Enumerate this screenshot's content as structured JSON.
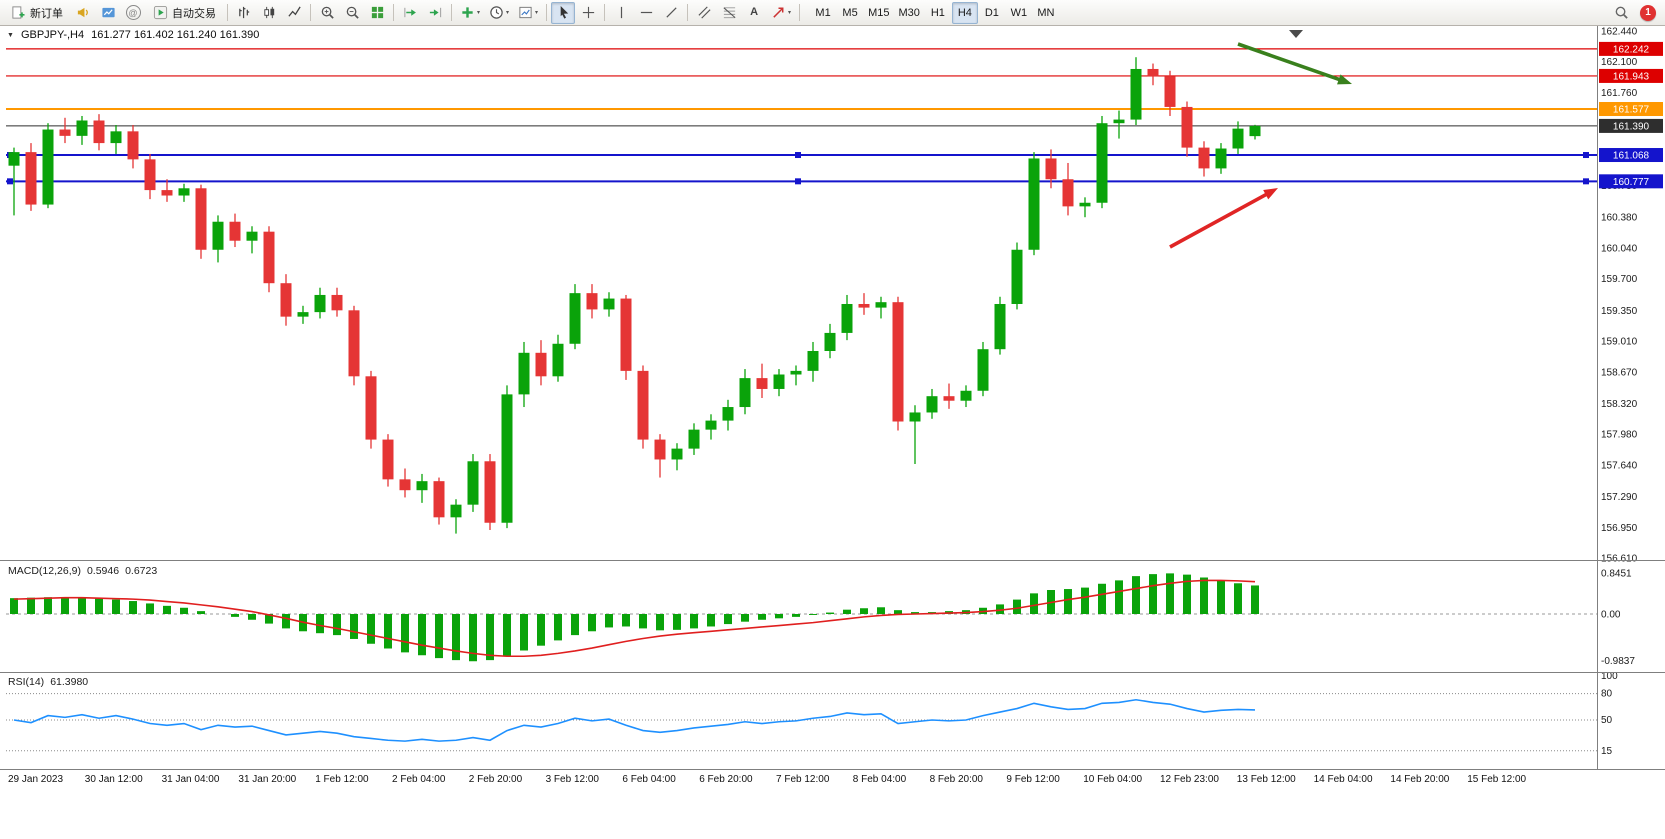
{
  "toolbar": {
    "new_order_label": "新订单",
    "autotrading_label": "自动交易",
    "timeframes": [
      "M1",
      "M5",
      "M15",
      "M30",
      "H1",
      "H4",
      "D1",
      "W1",
      "MN"
    ],
    "active_timeframe": "H4",
    "notification_count": "1",
    "icons": {
      "community": "@",
      "text_tool": "A",
      "caret": "▾",
      "expand_arrow": "▼"
    }
  },
  "legend": {
    "symbol_period": "GBPJPY-,H4",
    "ohlc_text": "161.277 161.402 161.240 161.390"
  },
  "indicators": {
    "macd": {
      "name": "MACD(12,26,9)",
      "main_value": "0.5946",
      "signal_value": "0.6723"
    },
    "rsi": {
      "name": "RSI(14)",
      "value": "61.3980"
    }
  },
  "chart_data": {
    "type": "candlestick",
    "symbol": "GBPJPY-",
    "timeframe": "H4",
    "current_ohlc": {
      "open": 161.277,
      "high": 161.402,
      "low": 161.24,
      "close": 161.39
    },
    "price_range": [
      156.61,
      162.44
    ],
    "colors": {
      "up": "#0aa30a",
      "down": "#e53535",
      "macd_hist": "#0aa30a",
      "macd_signal": "#e01f1f",
      "rsi_line": "#1e90ff"
    },
    "price_axis_ticks": [
      "162.440",
      "162.100",
      "161.760",
      "161.420",
      "161.080",
      "160.730",
      "160.380",
      "160.040",
      "159.700",
      "159.350",
      "159.010",
      "158.670",
      "158.320",
      "157.980",
      "157.640",
      "157.290",
      "156.950",
      "156.610"
    ],
    "hlines": [
      {
        "name": "resistance-line-1",
        "price": 162.242,
        "label": "162.242",
        "color": "#dd0000",
        "width": 1.2,
        "handles": false
      },
      {
        "name": "resistance-line-2",
        "price": 161.943,
        "label": "161.943",
        "color": "#dd0000",
        "width": 1.2,
        "handles": false
      },
      {
        "name": "pivot-line",
        "price": 161.577,
        "label": "161.577",
        "color": "#ff9800",
        "width": 2,
        "handles": false
      },
      {
        "name": "current-price-line",
        "price": 161.39,
        "label": "161.390",
        "color": "#2e2e2e",
        "width": 1,
        "handles": false
      },
      {
        "name": "support-line-1",
        "price": 161.068,
        "label": "161.068",
        "color": "#1414cc",
        "width": 2,
        "handles": true
      },
      {
        "name": "support-line-2",
        "price": 160.777,
        "label": "160.777",
        "color": "#1414cc",
        "width": 2,
        "handles": true
      }
    ],
    "arrows": [
      {
        "name": "downtrend-arrow",
        "color": "#39801d",
        "from": [
          1238,
          44
        ],
        "to": [
          1352,
          84
        ]
      },
      {
        "name": "bounce-arrow",
        "color": "#e02525",
        "from": [
          1170,
          247
        ],
        "to": [
          1278,
          188
        ]
      }
    ],
    "time_labels": [
      "29 Jan 2023",
      "30 Jan 12:00",
      "31 Jan 04:00",
      "31 Jan 20:00",
      "1 Feb 12:00",
      "2 Feb 04:00",
      "2 Feb 20:00",
      "3 Feb 12:00",
      "6 Feb 04:00",
      "6 Feb 20:00",
      "7 Feb 12:00",
      "8 Feb 04:00",
      "8 Feb 20:00",
      "9 Feb 12:00",
      "10 Feb 04:00",
      "12 Feb 23:00",
      "13 Feb 12:00",
      "14 Feb 04:00",
      "14 Feb 20:00",
      "15 Feb 12:00"
    ],
    "candles": [
      [
        160.95,
        161.15,
        160.4,
        161.1
      ],
      [
        161.1,
        161.2,
        160.45,
        160.52
      ],
      [
        160.52,
        161.42,
        160.48,
        161.35
      ],
      [
        161.35,
        161.48,
        161.2,
        161.28
      ],
      [
        161.28,
        161.5,
        161.18,
        161.45
      ],
      [
        161.45,
        161.52,
        161.12,
        161.2
      ],
      [
        161.2,
        161.4,
        161.08,
        161.33
      ],
      [
        161.33,
        161.4,
        160.92,
        161.02
      ],
      [
        161.02,
        161.08,
        160.58,
        160.68
      ],
      [
        160.68,
        160.8,
        160.55,
        160.62
      ],
      [
        160.62,
        160.75,
        160.55,
        160.7
      ],
      [
        160.7,
        160.74,
        159.92,
        160.02
      ],
      [
        160.02,
        160.4,
        159.88,
        160.33
      ],
      [
        160.33,
        160.42,
        160.05,
        160.12
      ],
      [
        160.12,
        160.28,
        159.98,
        160.22
      ],
      [
        160.22,
        160.28,
        159.55,
        159.65
      ],
      [
        159.65,
        159.75,
        159.18,
        159.28
      ],
      [
        159.28,
        159.4,
        159.2,
        159.33
      ],
      [
        159.33,
        159.6,
        159.26,
        159.52
      ],
      [
        159.52,
        159.6,
        159.28,
        159.35
      ],
      [
        159.35,
        159.4,
        158.52,
        158.62
      ],
      [
        158.62,
        158.68,
        157.82,
        157.92
      ],
      [
        157.92,
        157.98,
        157.4,
        157.48
      ],
      [
        157.48,
        157.6,
        157.28,
        157.36
      ],
      [
        157.36,
        157.54,
        157.22,
        157.46
      ],
      [
        157.46,
        157.5,
        156.98,
        157.06
      ],
      [
        157.06,
        157.26,
        156.88,
        157.2
      ],
      [
        157.2,
        157.76,
        157.12,
        157.68
      ],
      [
        157.68,
        157.76,
        156.92,
        157.0
      ],
      [
        157.0,
        158.52,
        156.94,
        158.42
      ],
      [
        158.42,
        159.0,
        158.28,
        158.88
      ],
      [
        158.88,
        159.02,
        158.52,
        158.62
      ],
      [
        158.62,
        159.08,
        158.56,
        158.98
      ],
      [
        158.98,
        159.64,
        158.92,
        159.54
      ],
      [
        159.54,
        159.64,
        159.26,
        159.36
      ],
      [
        159.36,
        159.55,
        159.28,
        159.48
      ],
      [
        159.48,
        159.52,
        158.58,
        158.68
      ],
      [
        158.68,
        158.74,
        157.82,
        157.92
      ],
      [
        157.92,
        157.98,
        157.5,
        157.7
      ],
      [
        157.7,
        157.88,
        157.58,
        157.82
      ],
      [
        157.82,
        158.1,
        157.75,
        158.03
      ],
      [
        158.03,
        158.2,
        157.92,
        158.13
      ],
      [
        158.13,
        158.36,
        158.02,
        158.28
      ],
      [
        158.28,
        158.7,
        158.2,
        158.6
      ],
      [
        158.6,
        158.76,
        158.38,
        158.48
      ],
      [
        158.48,
        158.7,
        158.4,
        158.64
      ],
      [
        158.64,
        158.74,
        158.52,
        158.68
      ],
      [
        158.68,
        159.0,
        158.56,
        158.9
      ],
      [
        158.9,
        159.2,
        158.82,
        159.1
      ],
      [
        159.1,
        159.52,
        159.02,
        159.42
      ],
      [
        159.42,
        159.54,
        159.3,
        159.38
      ],
      [
        159.38,
        159.5,
        159.26,
        159.44
      ],
      [
        159.44,
        159.5,
        158.02,
        158.12
      ],
      [
        158.12,
        158.3,
        157.65,
        158.22
      ],
      [
        158.22,
        158.48,
        158.15,
        158.4
      ],
      [
        158.4,
        158.54,
        158.26,
        158.35
      ],
      [
        158.35,
        158.52,
        158.28,
        158.46
      ],
      [
        158.46,
        159.0,
        158.4,
        158.92
      ],
      [
        158.92,
        159.5,
        158.86,
        159.42
      ],
      [
        159.42,
        160.1,
        159.36,
        160.02
      ],
      [
        160.02,
        161.1,
        159.96,
        161.03
      ],
      [
        161.03,
        161.13,
        160.7,
        160.8
      ],
      [
        160.8,
        160.98,
        160.4,
        160.5
      ],
      [
        160.5,
        160.6,
        160.38,
        160.54
      ],
      [
        160.54,
        161.5,
        160.48,
        161.42
      ],
      [
        161.42,
        161.56,
        161.25,
        161.46
      ],
      [
        161.46,
        162.15,
        161.4,
        162.02
      ],
      [
        162.02,
        162.08,
        161.84,
        161.94
      ],
      [
        161.94,
        162.0,
        161.5,
        161.6
      ],
      [
        161.6,
        161.66,
        161.05,
        161.15
      ],
      [
        161.15,
        161.22,
        160.83,
        160.92
      ],
      [
        160.92,
        161.2,
        160.86,
        161.14
      ],
      [
        161.14,
        161.44,
        161.08,
        161.36
      ],
      [
        161.277,
        161.402,
        161.24,
        161.39
      ]
    ],
    "macd": {
      "axis_labels": [
        "0.8451",
        "0.00",
        "-0.9837"
      ],
      "values": [
        0.33,
        0.34,
        0.35,
        0.35,
        0.34,
        0.32,
        0.3,
        0.27,
        0.22,
        0.17,
        0.13,
        0.06,
        0.0,
        -0.06,
        -0.12,
        -0.2,
        -0.3,
        -0.36,
        -0.4,
        -0.44,
        -0.52,
        -0.62,
        -0.72,
        -0.8,
        -0.86,
        -0.92,
        -0.96,
        -0.9837,
        -0.96,
        -0.88,
        -0.76,
        -0.66,
        -0.55,
        -0.44,
        -0.36,
        -0.28,
        -0.26,
        -0.3,
        -0.34,
        -0.33,
        -0.3,
        -0.26,
        -0.21,
        -0.16,
        -0.12,
        -0.09,
        -0.06,
        -0.02,
        0.03,
        0.09,
        0.12,
        0.14,
        0.08,
        0.04,
        0.04,
        0.06,
        0.08,
        0.13,
        0.2,
        0.3,
        0.43,
        0.5,
        0.52,
        0.55,
        0.63,
        0.7,
        0.79,
        0.83,
        0.8451,
        0.82,
        0.76,
        0.7,
        0.64,
        0.5946
      ],
      "signal": [
        0.31,
        0.32,
        0.33,
        0.34,
        0.34,
        0.33,
        0.32,
        0.31,
        0.29,
        0.26,
        0.23,
        0.19,
        0.15,
        0.1,
        0.05,
        -0.02,
        -0.09,
        -0.17,
        -0.24,
        -0.3,
        -0.37,
        -0.44,
        -0.51,
        -0.58,
        -0.65,
        -0.71,
        -0.77,
        -0.82,
        -0.86,
        -0.88,
        -0.88,
        -0.86,
        -0.82,
        -0.77,
        -0.71,
        -0.64,
        -0.57,
        -0.51,
        -0.46,
        -0.42,
        -0.39,
        -0.36,
        -0.33,
        -0.3,
        -0.27,
        -0.24,
        -0.21,
        -0.18,
        -0.14,
        -0.1,
        -0.06,
        -0.03,
        -0.01,
        0.0,
        0.01,
        0.02,
        0.03,
        0.05,
        0.08,
        0.12,
        0.18,
        0.24,
        0.3,
        0.35,
        0.41,
        0.47,
        0.53,
        0.59,
        0.64,
        0.68,
        0.7,
        0.7,
        0.69,
        0.6723
      ]
    },
    "rsi": {
      "axis_labels": [
        "100",
        "80",
        "50",
        "15"
      ],
      "levels": [
        80,
        50,
        15
      ],
      "values": [
        50,
        47,
        55,
        53,
        56,
        52,
        55,
        51,
        46,
        44,
        46,
        39,
        44,
        42,
        43,
        38,
        33,
        35,
        37,
        35,
        31,
        29,
        27,
        26,
        28,
        26,
        27,
        30,
        27,
        38,
        44,
        42,
        46,
        52,
        49,
        51,
        44,
        38,
        36,
        38,
        41,
        43,
        45,
        48,
        46,
        48,
        49,
        52,
        54,
        58,
        56,
        57,
        46,
        48,
        50,
        49,
        50,
        55,
        59,
        63,
        69,
        65,
        62,
        63,
        69,
        70,
        73,
        70,
        68,
        63,
        59,
        61,
        62,
        61.4
      ]
    }
  }
}
